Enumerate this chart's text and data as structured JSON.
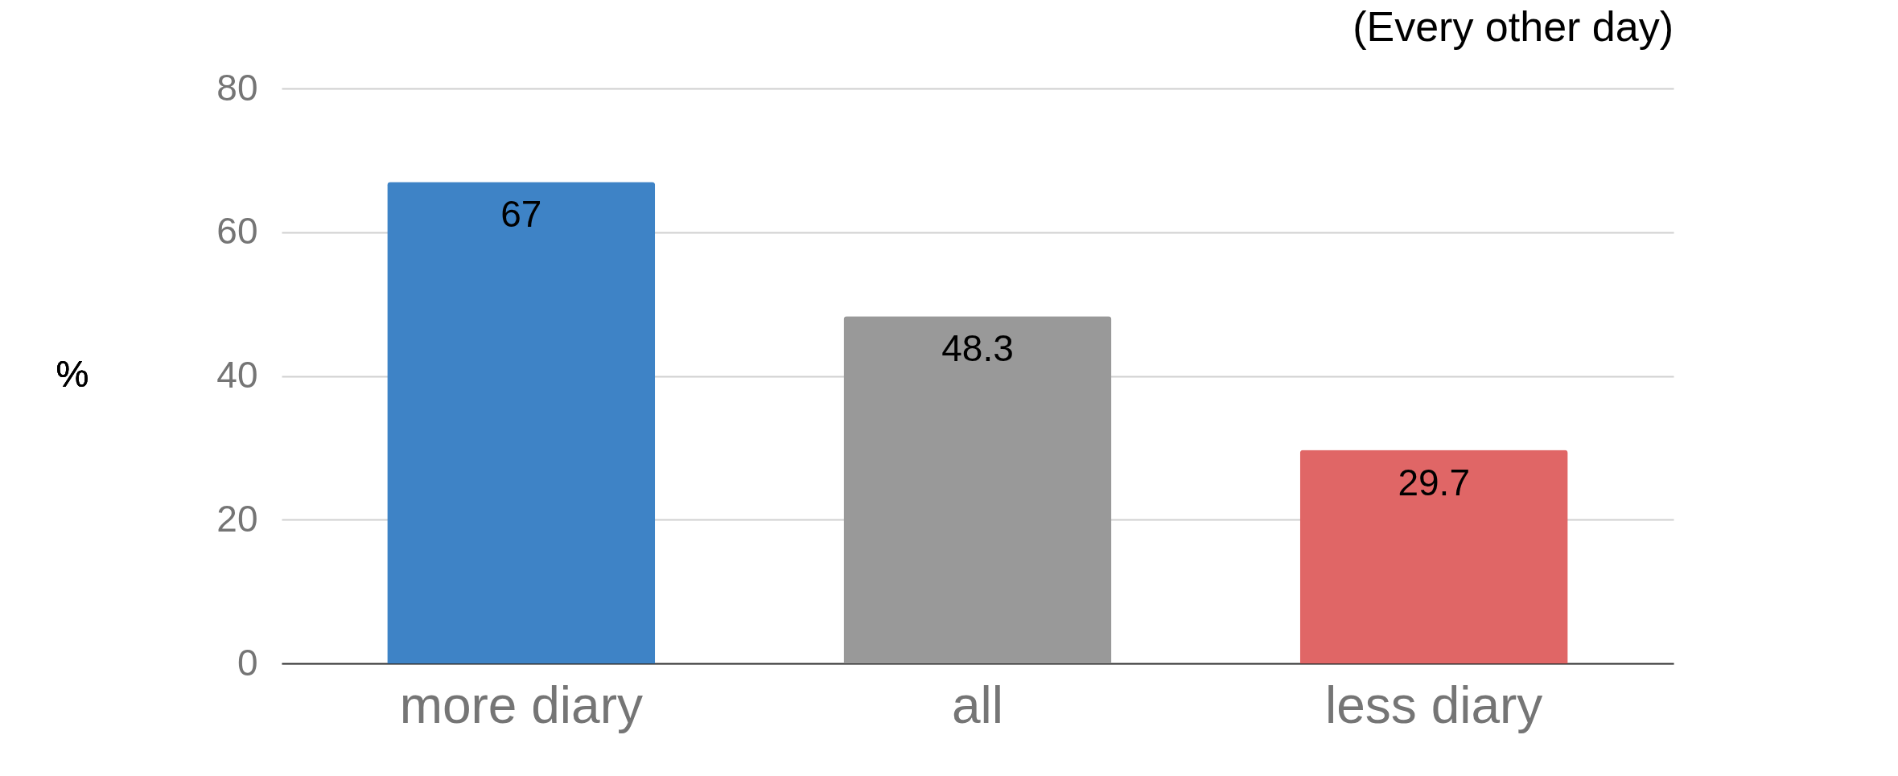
{
  "chart_data": {
    "type": "bar",
    "title": "(Every other day)",
    "ylabel": "%",
    "categories": [
      "more diary",
      "all",
      "less diary"
    ],
    "values": [
      67,
      48.3,
      29.7
    ],
    "colors": [
      "#3e83c6",
      "#999999",
      "#e06666"
    ],
    "ylim": [
      0,
      80
    ],
    "yticks": [
      0,
      20,
      40,
      60,
      80
    ],
    "grid": "y",
    "data_labels": true
  }
}
